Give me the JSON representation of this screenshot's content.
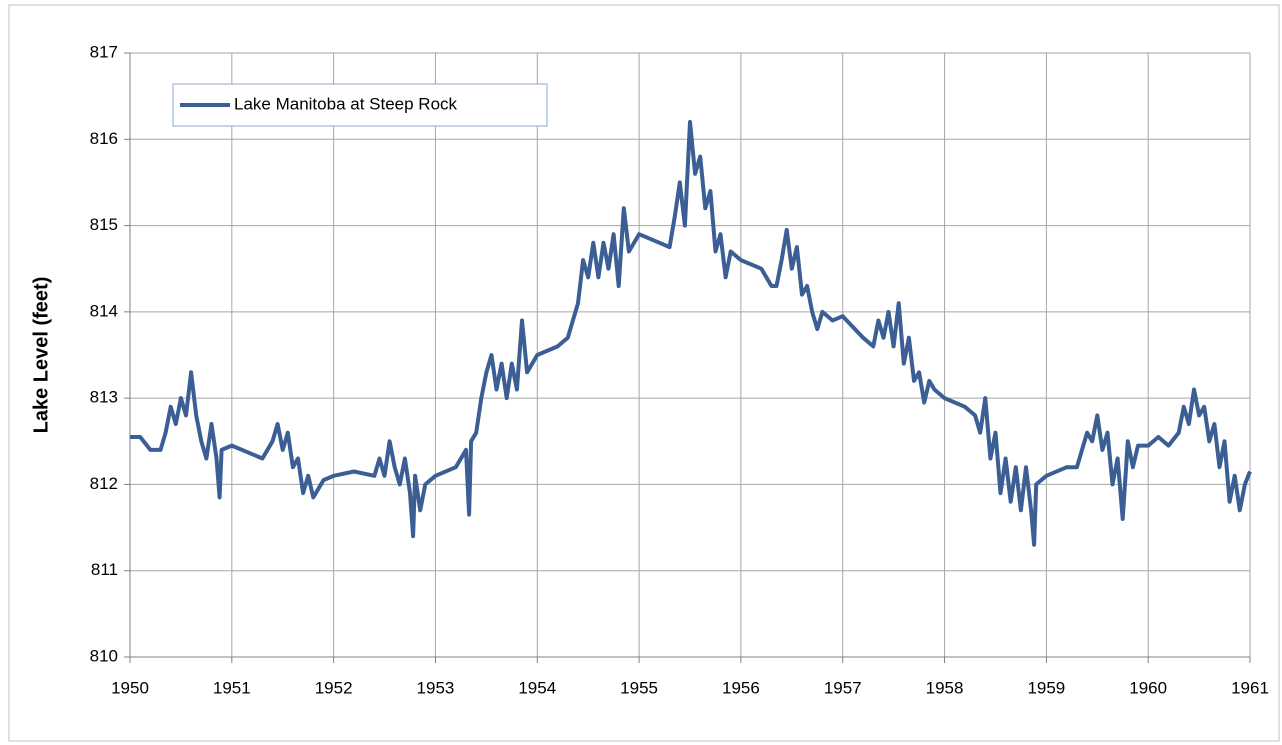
{
  "chart_data": {
    "type": "line",
    "y_label": "Lake Level (feet)",
    "legend": "upper left",
    "grid": true,
    "xlim": [
      1950,
      1961
    ],
    "xticks": [
      1950,
      1951,
      1952,
      1953,
      1954,
      1955,
      1956,
      1957,
      1958,
      1959,
      1960,
      1961
    ],
    "ylim": [
      810,
      817
    ],
    "yticks": [
      810,
      811,
      812,
      813,
      814,
      815,
      816,
      817
    ],
    "x": [
      1950.0,
      1950.1,
      1950.2,
      1950.3,
      1950.35,
      1950.4,
      1950.45,
      1950.5,
      1950.55,
      1950.6,
      1950.65,
      1950.7,
      1950.75,
      1950.8,
      1950.85,
      1950.88,
      1950.9,
      1951.0,
      1951.2,
      1951.3,
      1951.4,
      1951.45,
      1951.5,
      1951.55,
      1951.6,
      1951.65,
      1951.7,
      1951.75,
      1951.8,
      1951.9,
      1952.0,
      1952.2,
      1952.4,
      1952.45,
      1952.5,
      1952.55,
      1952.6,
      1952.65,
      1952.7,
      1952.75,
      1952.78,
      1952.8,
      1952.85,
      1952.9,
      1953.0,
      1953.2,
      1953.3,
      1953.33,
      1953.35,
      1953.4,
      1953.45,
      1953.5,
      1953.55,
      1953.6,
      1953.65,
      1953.7,
      1953.75,
      1953.8,
      1953.85,
      1953.9,
      1954.0,
      1954.2,
      1954.3,
      1954.4,
      1954.45,
      1954.5,
      1954.55,
      1954.6,
      1954.65,
      1954.7,
      1954.75,
      1954.8,
      1954.85,
      1954.9,
      1955.0,
      1955.2,
      1955.3,
      1955.35,
      1955.4,
      1955.45,
      1955.5,
      1955.55,
      1955.6,
      1955.65,
      1955.7,
      1955.75,
      1955.8,
      1955.85,
      1955.9,
      1956.0,
      1956.2,
      1956.3,
      1956.35,
      1956.4,
      1956.45,
      1956.5,
      1956.55,
      1956.6,
      1956.65,
      1956.7,
      1956.75,
      1956.8,
      1956.9,
      1957.0,
      1957.2,
      1957.3,
      1957.35,
      1957.4,
      1957.45,
      1957.5,
      1957.55,
      1957.6,
      1957.65,
      1957.7,
      1957.75,
      1957.8,
      1957.85,
      1957.9,
      1958.0,
      1958.2,
      1958.3,
      1958.35,
      1958.4,
      1958.45,
      1958.5,
      1958.55,
      1958.6,
      1958.65,
      1958.7,
      1958.75,
      1958.8,
      1958.85,
      1958.88,
      1958.9,
      1959.0,
      1959.2,
      1959.3,
      1959.35,
      1959.4,
      1959.45,
      1959.5,
      1959.55,
      1959.6,
      1959.65,
      1959.7,
      1959.75,
      1959.8,
      1959.85,
      1959.9,
      1960.0,
      1960.1,
      1960.2,
      1960.3,
      1960.35,
      1960.4,
      1960.45,
      1960.5,
      1960.55,
      1960.6,
      1960.65,
      1960.7,
      1960.75,
      1960.8,
      1960.85,
      1960.9,
      1960.95,
      1961.0
    ],
    "series": [
      {
        "name": "Lake Manitoba at Steep Rock",
        "color": "#3b5e94",
        "values": [
          812.55,
          812.55,
          812.4,
          812.4,
          812.6,
          812.9,
          812.7,
          813.0,
          812.8,
          813.3,
          812.8,
          812.5,
          812.3,
          812.7,
          812.3,
          811.85,
          812.4,
          812.45,
          812.35,
          812.3,
          812.5,
          812.7,
          812.4,
          812.6,
          812.2,
          812.3,
          811.9,
          812.1,
          811.85,
          812.05,
          812.1,
          812.15,
          812.1,
          812.3,
          812.1,
          812.5,
          812.2,
          812.0,
          812.3,
          811.9,
          811.4,
          812.1,
          811.7,
          812.0,
          812.1,
          812.2,
          812.4,
          811.65,
          812.5,
          812.6,
          813.0,
          813.3,
          813.5,
          813.1,
          813.4,
          813.0,
          813.4,
          813.1,
          813.9,
          813.3,
          813.5,
          813.6,
          813.7,
          814.1,
          814.6,
          814.4,
          814.8,
          814.4,
          814.8,
          814.5,
          814.9,
          814.3,
          815.2,
          814.7,
          814.9,
          814.8,
          814.75,
          815.1,
          815.5,
          815.0,
          816.2,
          815.6,
          815.8,
          815.2,
          815.4,
          814.7,
          814.9,
          814.4,
          814.7,
          814.6,
          814.5,
          814.3,
          814.3,
          814.6,
          814.95,
          814.5,
          814.75,
          814.2,
          814.3,
          814.0,
          813.8,
          814.0,
          813.9,
          813.95,
          813.7,
          813.6,
          813.9,
          813.7,
          814.0,
          813.6,
          814.1,
          813.4,
          813.7,
          813.2,
          813.3,
          812.95,
          813.2,
          813.1,
          813.0,
          812.9,
          812.8,
          812.6,
          813.0,
          812.3,
          812.6,
          811.9,
          812.3,
          811.8,
          812.2,
          811.7,
          812.2,
          811.7,
          811.3,
          812.0,
          812.1,
          812.2,
          812.2,
          812.4,
          812.6,
          812.5,
          812.8,
          812.4,
          812.6,
          812.0,
          812.3,
          811.6,
          812.5,
          812.2,
          812.45,
          812.45,
          812.55,
          812.45,
          812.6,
          812.9,
          812.7,
          813.1,
          812.8,
          812.9,
          812.5,
          812.7,
          812.2,
          812.5,
          811.8,
          812.1,
          811.7,
          812.0,
          812.15
        ]
      }
    ]
  }
}
